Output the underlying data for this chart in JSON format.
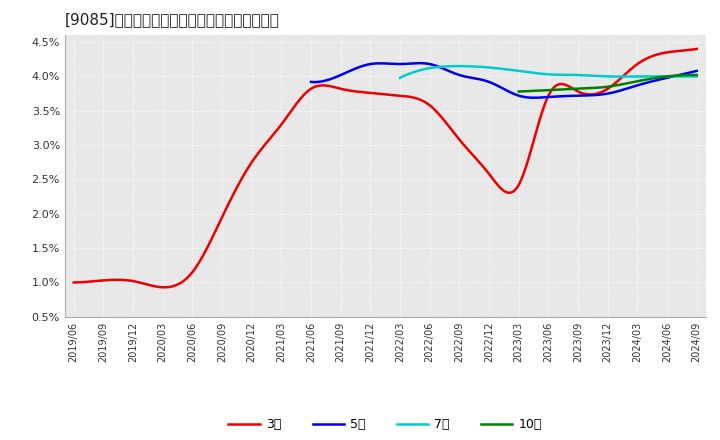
{
  "title": "[9085]　当期純利益マージンの標準偏差の推移",
  "ylim": [
    0.005,
    0.046
  ],
  "yticks": [
    0.005,
    0.01,
    0.015,
    0.02,
    0.025,
    0.03,
    0.035,
    0.04,
    0.045
  ],
  "ytick_labels": [
    "0.5%",
    "1.0%",
    "1.5%",
    "2.0%",
    "2.5%",
    "3.0%",
    "3.5%",
    "4.0%",
    "4.5%"
  ],
  "background_color": "#ffffff",
  "plot_bg_color": "#e8e8e8",
  "grid_color": "#ffffff",
  "series": {
    "3year": {
      "color": "#ee0000",
      "label": "3年",
      "data": [
        [
          "2019/06",
          0.01
        ],
        [
          "2019/09",
          0.0103
        ],
        [
          "2019/12",
          0.0102
        ],
        [
          "2020/03",
          0.0093
        ],
        [
          "2020/06",
          0.0115
        ],
        [
          "2020/09",
          0.0195
        ],
        [
          "2020/12",
          0.0275
        ],
        [
          "2021/03",
          0.033
        ],
        [
          "2021/06",
          0.0382
        ],
        [
          "2021/09",
          0.0382
        ],
        [
          "2021/12",
          0.0376
        ],
        [
          "2022/03",
          0.0372
        ],
        [
          "2022/06",
          0.0358
        ],
        [
          "2022/09",
          0.0308
        ],
        [
          "2022/12",
          0.0258
        ],
        [
          "2023/03",
          0.0242
        ],
        [
          "2023/06",
          0.0372
        ],
        [
          "2023/09",
          0.0378
        ],
        [
          "2023/12",
          0.0382
        ],
        [
          "2024/03",
          0.0418
        ],
        [
          "2024/06",
          0.0435
        ],
        [
          "2024/09",
          0.044
        ]
      ]
    },
    "5year": {
      "color": "#0000ee",
      "label": "5年",
      "data": [
        [
          "2021/06",
          0.0392
        ],
        [
          "2021/09",
          0.0402
        ],
        [
          "2021/12",
          0.0418
        ],
        [
          "2022/03",
          0.0418
        ],
        [
          "2022/06",
          0.0418
        ],
        [
          "2022/09",
          0.0402
        ],
        [
          "2022/12",
          0.0392
        ],
        [
          "2023/03",
          0.0372
        ],
        [
          "2023/06",
          0.037
        ],
        [
          "2023/09",
          0.0372
        ],
        [
          "2023/12",
          0.0375
        ],
        [
          "2024/03",
          0.0387
        ],
        [
          "2024/06",
          0.0398
        ],
        [
          "2024/09",
          0.0408
        ]
      ]
    },
    "7year": {
      "color": "#00cccc",
      "label": "7年",
      "data": [
        [
          "2022/03",
          0.0398
        ],
        [
          "2022/06",
          0.0412
        ],
        [
          "2022/09",
          0.0415
        ],
        [
          "2022/12",
          0.0413
        ],
        [
          "2023/03",
          0.0408
        ],
        [
          "2023/06",
          0.0403
        ],
        [
          "2023/09",
          0.0402
        ],
        [
          "2023/12",
          0.04
        ],
        [
          "2024/03",
          0.04
        ],
        [
          "2024/06",
          0.04
        ],
        [
          "2024/09",
          0.04
        ]
      ]
    },
    "10year": {
      "color": "#008000",
      "label": "10年",
      "data": [
        [
          "2023/03",
          0.0378
        ],
        [
          "2023/06",
          0.038
        ],
        [
          "2023/09",
          0.0382
        ],
        [
          "2023/12",
          0.0385
        ],
        [
          "2024/03",
          0.0393
        ],
        [
          "2024/06",
          0.04
        ],
        [
          "2024/09",
          0.0402
        ]
      ]
    }
  },
  "xtick_labels": [
    "2019/06",
    "2019/09",
    "2019/12",
    "2020/03",
    "2020/06",
    "2020/09",
    "2020/12",
    "2021/03",
    "2021/06",
    "2021/09",
    "2021/12",
    "2022/03",
    "2022/06",
    "2022/09",
    "2022/12",
    "2023/03",
    "2023/06",
    "2023/09",
    "2023/12",
    "2024/03",
    "2024/06",
    "2024/09"
  ]
}
